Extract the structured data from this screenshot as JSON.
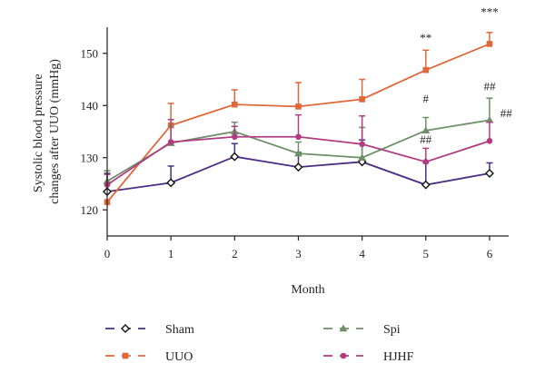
{
  "chart_data": {
    "type": "line",
    "title": "",
    "xlabel": "Month",
    "ylabel_lines": [
      "Systolic blood pressure",
      "changes after UUO (mmHg)"
    ],
    "x": [
      0,
      1,
      2,
      3,
      4,
      5,
      6
    ],
    "xlim": [
      0,
      6.3
    ],
    "ylim": [
      115,
      155
    ],
    "yticks": [
      120,
      130,
      140,
      150
    ],
    "grid": false,
    "legend_position": "bottom",
    "series": [
      {
        "name": "Sham",
        "color": "#4b2e83",
        "marker": "diamond-open",
        "values": [
          123.5,
          125.2,
          130.2,
          128.2,
          129.2,
          124.8,
          127.0
        ],
        "errors": [
          3.5,
          3.2,
          2.5,
          2.8,
          4.2,
          4.2,
          2.0
        ]
      },
      {
        "name": "UUO",
        "color": "#e0673a",
        "marker": "square",
        "values": [
          121.5,
          136.2,
          140.2,
          139.8,
          141.2,
          146.8,
          151.8
        ],
        "errors": [
          0,
          4.2,
          2.8,
          4.6,
          3.8,
          3.8,
          2.2
        ]
      },
      {
        "name": "Spi",
        "color": "#6e9068",
        "marker": "triangle",
        "values": [
          125.5,
          132.8,
          135.0,
          130.8,
          130.0,
          135.2,
          137.2
        ],
        "errors": [
          2.0,
          3.2,
          1.8,
          2.2,
          5.8,
          2.5,
          4.2
        ]
      },
      {
        "name": "HJHF",
        "color": "#b03c82",
        "marker": "circle",
        "values": [
          124.8,
          133.0,
          134.0,
          134.0,
          132.6,
          129.2,
          133.2
        ],
        "errors": [
          2.0,
          4.3,
          2.0,
          4.2,
          5.4,
          2.6,
          3.6
        ]
      }
    ],
    "annotations": [
      {
        "text": "**",
        "x": 5,
        "y": 152.2
      },
      {
        "text": "***",
        "x": 6,
        "y": 157.2
      },
      {
        "text": "#",
        "x": 5,
        "y": 140.6
      },
      {
        "text": "##",
        "x": 5,
        "y": 132.7
      },
      {
        "text": "##",
        "x": 6,
        "y": 142.9
      },
      {
        "text": "##",
        "x": 6.26,
        "y": 137.8
      }
    ]
  }
}
